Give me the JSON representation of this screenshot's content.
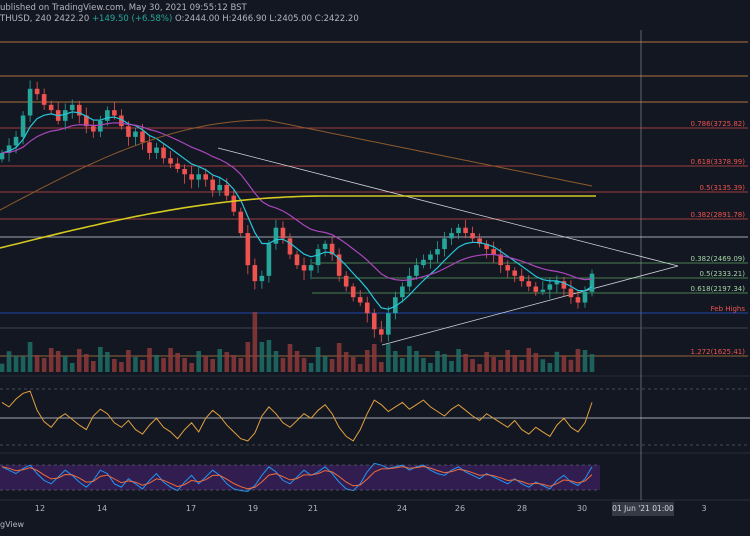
{
  "header": {
    "line1": "ublished on TradingView.com, May 30, 2021 09:55:12 BST",
    "symbol": "THUSD, 240",
    "price": "2422.20",
    "change": "+149.50 (+6.58%)",
    "ohlc": "O:2444.00 H:2466.90 L:2405.00 C:2422.20"
  },
  "footer": {
    "text": "gView"
  },
  "cursor_date": "01 Jun '21  01:00",
  "colors": {
    "background": "#131722",
    "up": "#26a69a",
    "down": "#ef5350",
    "ema_fast": "#26c6da",
    "ema_mid": "#ab47bc",
    "ma_orange": "#8d5a2b",
    "ma_yellow": "#d4c91f",
    "fib_line": "#e0904a",
    "rsi": "#e0a040",
    "stoch_k": "#2196f3",
    "stoch_d": "#ef6c3a"
  },
  "chart_data": {
    "type": "line",
    "title": "",
    "x_axis_labels": [
      "12",
      "14",
      "17",
      "19",
      "21",
      "24",
      "26",
      "28",
      "30",
      "01 Jun '21  01:00",
      "3"
    ],
    "fib_levels": [
      {
        "label": "0.786(3725.82)",
        "value": 3725.82
      },
      {
        "label": "0.618(3378.99)",
        "value": 3378.99
      },
      {
        "label": "0.5(3135.39)",
        "value": 3135.39
      },
      {
        "label": "0.382(2891.78)",
        "value": 2891.78
      },
      {
        "label": "0.382(2469.09)",
        "value": 2469.09
      },
      {
        "label": "0.5(2333.21)",
        "value": 2333.21
      },
      {
        "label": "0.618(2197.34)",
        "value": 2197.34
      },
      {
        "label": "Feb Highs",
        "value": 2040
      },
      {
        "label": "1.272(1625.41)",
        "value": 1625.41
      }
    ],
    "candles_close": [
      3550,
      3620,
      3700,
      3900,
      4150,
      4100,
      4000,
      3950,
      3850,
      3950,
      4000,
      3900,
      3800,
      3750,
      3850,
      3950,
      3900,
      3800,
      3700,
      3750,
      3650,
      3550,
      3600,
      3500,
      3450,
      3400,
      3350,
      3300,
      3350,
      3300,
      3200,
      3250,
      3150,
      3000,
      2800,
      2500,
      2350,
      2400,
      2700,
      2850,
      2750,
      2600,
      2500,
      2450,
      2500,
      2650,
      2700,
      2600,
      2400,
      2300,
      2200,
      2150,
      2050,
      1900,
      1850,
      2050,
      2200,
      2300,
      2400,
      2500,
      2550,
      2600,
      2650,
      2750,
      2800,
      2850,
      2800,
      2750,
      2700,
      2650,
      2600,
      2500,
      2450,
      2400,
      2350,
      2300,
      2250,
      2270,
      2320,
      2350,
      2280,
      2200,
      2150,
      2250,
      2420
    ],
    "rsi_values": [
      62,
      58,
      65,
      70,
      72,
      55,
      45,
      40,
      48,
      52,
      47,
      42,
      38,
      50,
      56,
      52,
      44,
      40,
      46,
      38,
      34,
      42,
      48,
      40,
      36,
      30,
      38,
      44,
      36,
      48,
      55,
      50,
      42,
      36,
      30,
      28,
      35,
      50,
      58,
      52,
      44,
      40,
      46,
      52,
      48,
      55,
      60,
      52,
      40,
      32,
      28,
      38,
      52,
      64,
      60,
      54,
      58,
      62,
      56,
      60,
      64,
      58,
      54,
      50,
      56,
      60,
      55,
      50,
      46,
      52,
      48,
      44,
      40,
      46,
      38,
      34,
      40,
      36,
      32,
      42,
      48,
      40,
      36,
      44,
      62
    ],
    "stoch_k": [
      80,
      70,
      60,
      75,
      85,
      60,
      40,
      30,
      50,
      70,
      55,
      35,
      20,
      40,
      70,
      60,
      30,
      20,
      45,
      30,
      15,
      40,
      60,
      35,
      20,
      10,
      35,
      55,
      30,
      50,
      70,
      55,
      30,
      15,
      10,
      8,
      25,
      55,
      80,
      65,
      40,
      30,
      50,
      70,
      55,
      65,
      80,
      60,
      35,
      15,
      10,
      30,
      65,
      90,
      85,
      75,
      80,
      85,
      70,
      80,
      85,
      70,
      60,
      55,
      70,
      80,
      65,
      55,
      45,
      60,
      50,
      40,
      30,
      45,
      30,
      20,
      35,
      25,
      15,
      40,
      55,
      35,
      25,
      45,
      80
    ],
    "price_ylim": [
      1500,
      4700
    ]
  }
}
